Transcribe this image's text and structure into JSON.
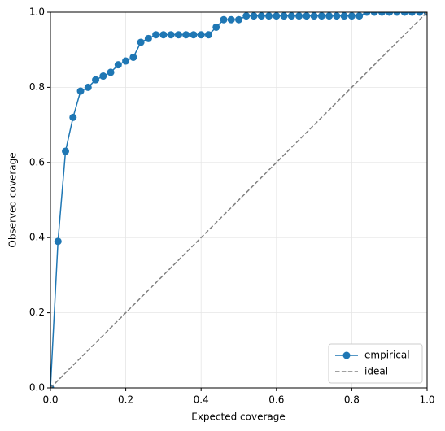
{
  "chart_data": {
    "type": "line",
    "xlabel": "Expected coverage",
    "ylabel": "Observed coverage",
    "xlim": [
      0,
      1
    ],
    "ylim": [
      0,
      1
    ],
    "xticks": [
      {
        "value": 0,
        "label": "0.0"
      },
      0.2,
      0.4,
      0.6,
      0.8,
      {
        "value": 1,
        "label": "1.0"
      }
    ],
    "yticks": [
      {
        "value": 0,
        "label": "0.0"
      },
      0.2,
      0.4,
      0.6,
      0.8,
      {
        "value": 1,
        "label": "1.0"
      }
    ],
    "grid": true,
    "legend": "lower right",
    "series": [
      {
        "name": "empirical",
        "color": "#1f77b4",
        "marker": true,
        "dashed": false,
        "x": [
          0,
          0.02,
          0.04,
          0.06,
          0.08,
          0.1,
          0.12,
          0.14,
          0.16,
          0.18,
          0.2,
          0.22,
          0.24,
          0.26,
          0.28,
          0.3,
          0.32,
          0.34,
          0.36,
          0.38,
          0.4,
          0.42,
          0.44,
          0.46,
          0.48,
          0.5,
          0.52,
          0.54,
          0.56,
          0.58,
          0.6,
          0.62,
          0.64,
          0.66,
          0.68,
          0.7,
          0.72,
          0.74,
          0.76,
          0.78,
          0.8,
          0.82,
          0.84,
          0.86,
          0.88,
          0.9,
          0.92,
          0.94,
          0.96,
          0.98,
          1
        ],
        "values": [
          0,
          0.39,
          0.63,
          0.72,
          0.79,
          0.8,
          0.82,
          0.83,
          0.84,
          0.86,
          0.87,
          0.88,
          0.92,
          0.93,
          0.94,
          0.94,
          0.94,
          0.94,
          0.94,
          0.94,
          0.94,
          0.94,
          0.96,
          0.98,
          0.98,
          0.98,
          0.99,
          0.99,
          0.99,
          0.99,
          0.99,
          0.99,
          0.99,
          0.99,
          0.99,
          0.99,
          0.99,
          0.99,
          0.99,
          0.99,
          0.99,
          0.99,
          1,
          1,
          1,
          1,
          1,
          1,
          1,
          1,
          1
        ]
      },
      {
        "name": "ideal",
        "color": "#808080",
        "marker": false,
        "dashed": true,
        "x": [
          0,
          1
        ],
        "values": [
          0,
          1
        ]
      }
    ]
  }
}
